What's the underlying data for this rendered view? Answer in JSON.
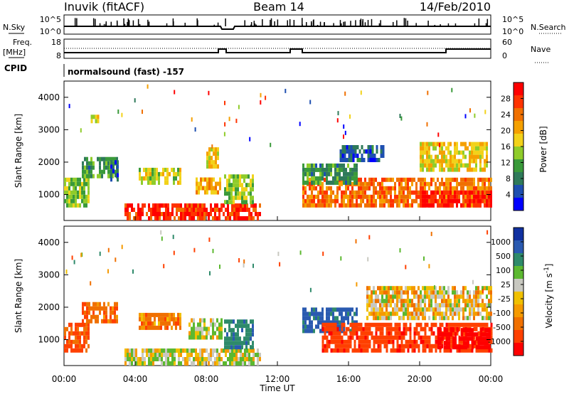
{
  "header": {
    "station": "Inuvik (fitACF)",
    "beam": "Beam 14",
    "date": "14/Feb/2010"
  },
  "nsky_panel": {
    "left_label": "N.Sky",
    "right_label": "N.Search",
    "left_ticks": [
      "10^5",
      "10^0"
    ],
    "right_ticks": [
      "10^5",
      "10^0"
    ]
  },
  "freq_panel": {
    "left_label_1": "Freq.",
    "left_label_2": "[MHz]",
    "right_label": "Nave",
    "left_ticks": [
      "18",
      "8"
    ],
    "right_ticks": [
      "60",
      "0"
    ]
  },
  "cpid": {
    "label": "CPID",
    "value": "normalsound (fast) -157"
  },
  "time_axis": {
    "label": "Time UT",
    "ticks": [
      "00:00",
      "04:00",
      "08:00",
      "12:00",
      "16:00",
      "20:00",
      "00:00"
    ]
  },
  "colors": {
    "power_scale": [
      "#0000ff",
      "#1e4fb0",
      "#2f7a5a",
      "#3a9a3a",
      "#8fcc2a",
      "#f2d21a",
      "#f5a000",
      "#f07000",
      "#ff3300",
      "#ff0000"
    ],
    "velocity_scale": [
      "#1030a0",
      "#2a5ab0",
      "#2e8a6a",
      "#5cb830",
      "#c8c8c0",
      "#f0c000",
      "#f59a00",
      "#f07000",
      "#ff4000",
      "#ff0000"
    ]
  },
  "chart_data": [
    {
      "type": "heatmap",
      "panel": "power",
      "ylabel": "Slant Range [km]",
      "xlabel": "",
      "ylim": [
        200,
        4500
      ],
      "yticks": [
        "1000",
        "2000",
        "3000",
        "4000"
      ],
      "colorbar_label": "Power [dB]",
      "colorbar_ticks": [
        "4",
        "8",
        "12",
        "16",
        "20",
        "24",
        "28"
      ],
      "colorbar_range": [
        0,
        32
      ],
      "patches": [
        {
          "t0": 0.0,
          "t1": 1.4,
          "r0": 600,
          "r1": 1400,
          "v": 14
        },
        {
          "t0": 1.0,
          "t1": 3.0,
          "r0": 1500,
          "r1": 2100,
          "v": 10
        },
        {
          "t0": 2.6,
          "t1": 3.0,
          "r0": 1400,
          "r1": 2000,
          "v": 6
        },
        {
          "t0": 1.5,
          "t1": 1.9,
          "r0": 3200,
          "r1": 3400,
          "v": 16
        },
        {
          "t0": 3.4,
          "t1": 11.0,
          "r0": 200,
          "r1": 600,
          "v": 28
        },
        {
          "t0": 4.2,
          "t1": 6.5,
          "r0": 1300,
          "r1": 1700,
          "v": 16
        },
        {
          "t0": 7.4,
          "t1": 8.8,
          "r0": 1000,
          "r1": 1500,
          "v": 20
        },
        {
          "t0": 8.0,
          "t1": 8.6,
          "r0": 1800,
          "r1": 2400,
          "v": 18
        },
        {
          "t0": 9.0,
          "t1": 10.6,
          "r0": 700,
          "r1": 1500,
          "v": 14
        },
        {
          "t0": 13.4,
          "t1": 24.0,
          "r0": 600,
          "r1": 1400,
          "v": 24
        },
        {
          "t0": 13.4,
          "t1": 16.5,
          "r0": 1300,
          "r1": 1900,
          "v": 10
        },
        {
          "t0": 15.5,
          "t1": 18.0,
          "r0": 2000,
          "r1": 2500,
          "v": 6
        },
        {
          "t0": 20.0,
          "t1": 24.0,
          "r0": 600,
          "r1": 1100,
          "v": 30
        },
        {
          "t0": 20.0,
          "t1": 23.8,
          "r0": 1700,
          "r1": 2600,
          "v": 18
        }
      ]
    },
    {
      "type": "heatmap",
      "panel": "velocity",
      "ylabel": "Slant Range [km]",
      "xlabel": "Time UT",
      "ylim": [
        200,
        4500
      ],
      "yticks": [
        "1000",
        "2000",
        "3000",
        "4000"
      ],
      "colorbar_label": "Velocity [m s^-1]",
      "colorbar_ticks": [
        "1000",
        "500",
        "100",
        "25",
        "-25",
        "-100",
        "-500",
        "-1000"
      ],
      "patches": [
        {
          "t0": 0.0,
          "t1": 1.4,
          "r0": 600,
          "r1": 1400,
          "v": -300
        },
        {
          "t0": 1.0,
          "t1": 3.0,
          "r0": 1500,
          "r1": 2100,
          "v": -200
        },
        {
          "t0": 3.4,
          "t1": 11.0,
          "r0": 200,
          "r1": 600,
          "v": 60
        },
        {
          "t0": 4.2,
          "t1": 6.5,
          "r0": 1300,
          "r1": 1700,
          "v": -150
        },
        {
          "t0": 7.0,
          "t1": 8.8,
          "r0": 1000,
          "r1": 1600,
          "v": 80
        },
        {
          "t0": 9.0,
          "t1": 10.6,
          "r0": 700,
          "r1": 1500,
          "v": 400
        },
        {
          "t0": 13.4,
          "t1": 16.5,
          "r0": 1200,
          "r1": 1900,
          "v": 600
        },
        {
          "t0": 14.5,
          "t1": 24.0,
          "r0": 600,
          "r1": 1400,
          "v": -400
        },
        {
          "t0": 17.0,
          "t1": 24.0,
          "r0": 1600,
          "r1": 2600,
          "v": 0
        },
        {
          "t0": 21.0,
          "t1": 24.0,
          "r0": 700,
          "r1": 1300,
          "v": -700
        }
      ]
    }
  ]
}
